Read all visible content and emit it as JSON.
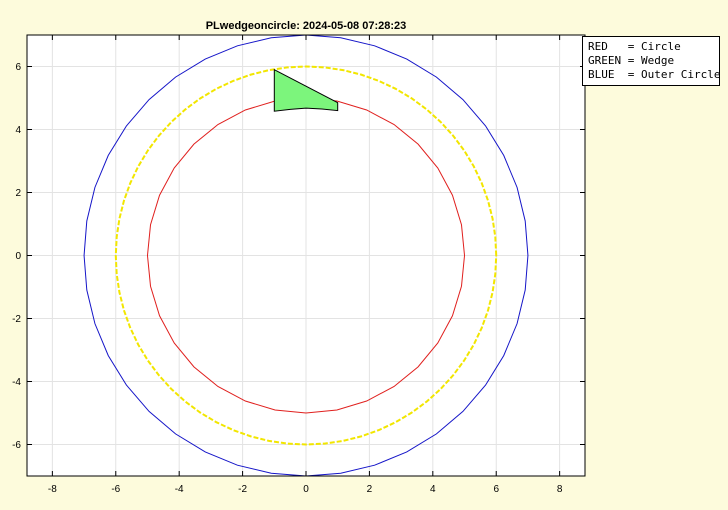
{
  "chart_data": {
    "type": "line",
    "title": "PLwedgeoncircle: 2024-05-08 07:28:23",
    "xlabel": "",
    "ylabel": "",
    "xlim": [
      -8.8,
      8.8
    ],
    "ylim": [
      -7,
      7
    ],
    "xticks": [
      -8,
      -6,
      -4,
      -2,
      0,
      2,
      4,
      6,
      8
    ],
    "yticks": [
      -6,
      -4,
      -2,
      0,
      2,
      4,
      6
    ],
    "grid": true,
    "legend_placement": "outside-top-right",
    "series": [
      {
        "key": "circle",
        "shape": "circle",
        "center": [
          0,
          0
        ],
        "radius": 5,
        "color": "#e0201e",
        "style": "solid",
        "segments": 32
      },
      {
        "key": "dashed",
        "shape": "circle",
        "center": [
          0,
          0
        ],
        "radius": 6,
        "color": "#f2e600",
        "style": "dashed",
        "segments": 64
      },
      {
        "key": "outer",
        "shape": "circle",
        "center": [
          0,
          0
        ],
        "radius": 7,
        "color": "#1515c8",
        "style": "solid",
        "segments": 40
      },
      {
        "key": "wedge",
        "shape": "polygon",
        "color": "#7cf57c",
        "edge": "#000000",
        "points": [
          [
            -1.0,
            5.9
          ],
          [
            1.0,
            4.85
          ],
          [
            1.0,
            4.6
          ],
          [
            0.5,
            4.65
          ],
          [
            0.0,
            4.68
          ],
          [
            -0.5,
            4.64
          ],
          [
            -1.0,
            4.58
          ]
        ]
      }
    ]
  },
  "legend": [
    "RED   = Circle",
    "GREEN = Wedge",
    "BLUE  = Outer Circle"
  ]
}
